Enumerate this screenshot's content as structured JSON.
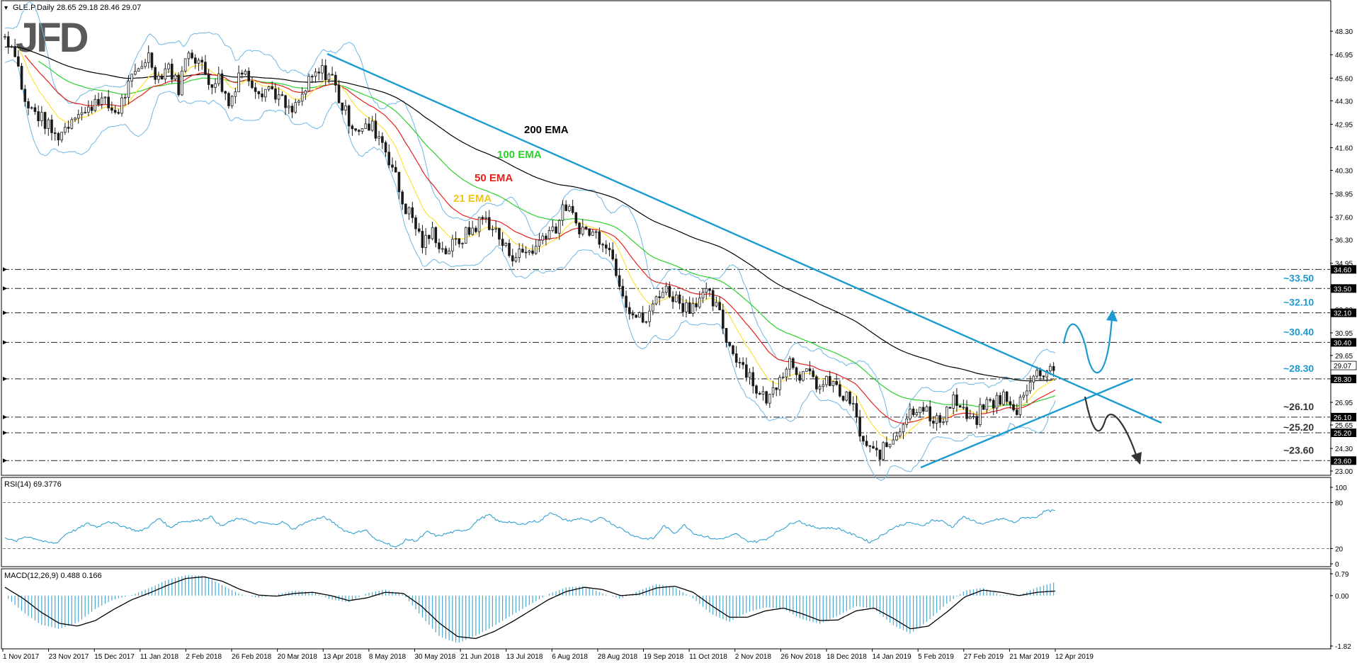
{
  "colors": {
    "candle": "#1a1a1a",
    "bb": "#6cb8e6",
    "ema21": "#ffe13d",
    "ema50": "#e3221c",
    "ema100": "#2cd12c",
    "ema200": "#000000",
    "trend": "#1b9bd0",
    "rsi": "#1f9ad0",
    "macd_hist": "#47a9cf",
    "macd_line": "#000000",
    "level_line": "#222222",
    "level_text": "#1b9bd0"
  },
  "chart_data": [
    {
      "type": "candlestick",
      "symbol_header": "GLE.P,Daily",
      "ohlc_header": "28.65 29.18 28.46 29.07",
      "logo": "JFD",
      "ylim": [
        23.0,
        49.2
      ],
      "y_ticks": [
        "48.30",
        "46.95",
        "45.60",
        "44.30",
        "42.95",
        "41.60",
        "40.30",
        "38.95",
        "37.60",
        "36.30",
        "34.95",
        "33.60",
        "32.30",
        "30.95",
        "29.65",
        "28.30",
        "26.95",
        "25.65",
        "24.30",
        "23.00"
      ],
      "x_labels": [
        "1 Nov 2017",
        "23 Nov 2017",
        "15 Dec 2017",
        "11 Jan 2018",
        "2 Feb 2018",
        "26 Feb 2018",
        "20 Mar 2018",
        "13 Apr 2018",
        "8 May 2018",
        "30 May 2018",
        "21 Jun 2018",
        "13 Jul 2018",
        "6 Aug 2018",
        "28 Aug 2018",
        "19 Sep 2018",
        "11 Oct 2018",
        "2 Nov 2018",
        "26 Nov 2018",
        "18 Dec 2018",
        "14 Jan 2019",
        "5 Feb 2019",
        "27 Feb 2019",
        "21 Mar 2019",
        "12 Apr 2019"
      ],
      "price_path": [
        48.0,
        47.2,
        44.0,
        43.6,
        43.0,
        42.2,
        42.8,
        43.8,
        43.5,
        44.6,
        44.0,
        43.6,
        45.0,
        46.0,
        47.0,
        45.6,
        46.4,
        45.0,
        47.3,
        46.6,
        45.4,
        45.6,
        44.0,
        46.1,
        45.6,
        44.9,
        45.1,
        44.4,
        43.5,
        44.4,
        45.5,
        46.0,
        45.8,
        44.0,
        43.0,
        42.6,
        42.8,
        42.0,
        40.5,
        38.4,
        37.5,
        36.0,
        36.8,
        35.6,
        36.0,
        36.5,
        37.0,
        37.6,
        36.9,
        35.8,
        35.4,
        35.6,
        35.8,
        36.8,
        37.0,
        38.3,
        37.2,
        36.8,
        36.6,
        36.2,
        34.5,
        32.6,
        31.8,
        31.6,
        33.3,
        33.4,
        32.8,
        32.4,
        33.0,
        33.1,
        32.1,
        30.2,
        29.4,
        28.6,
        27.3,
        27.2,
        28.6,
        29.4,
        28.6,
        28.4,
        27.8,
        28.2,
        27.3,
        27.0,
        24.8,
        24.0,
        24.1,
        24.8,
        25.8,
        26.6,
        26.9,
        25.6,
        26.2,
        27.2,
        26.3,
        25.7,
        26.8,
        27.0,
        27.3,
        26.2,
        27.8,
        28.5,
        28.8,
        29.07
      ],
      "ema200_label": "200 EMA",
      "ema100_label": "100 EMA",
      "ema50_label": "50 EMA",
      "ema21_label": "21 EMA",
      "price_labels": [
        "34.60",
        "33.50",
        "32.10",
        "30.40",
        "29.07",
        "28.30",
        "26.10",
        "25.20",
        "23.60"
      ],
      "levels": [
        {
          "value": 34.6,
          "badge": "34.60",
          "label": ""
        },
        {
          "value": 33.5,
          "badge": "33.50",
          "label": "~33.50"
        },
        {
          "value": 32.1,
          "badge": "32.10",
          "label": "~32.10"
        },
        {
          "value": 30.4,
          "badge": "30.40",
          "label": "~30.40"
        },
        {
          "value": 28.3,
          "badge": "28.30",
          "label": "~28.30"
        },
        {
          "value": 26.1,
          "badge": "26.10",
          "label": "~26.10"
        },
        {
          "value": 25.2,
          "badge": "25.20",
          "label": "~25.20"
        },
        {
          "value": 23.6,
          "badge": "23.60",
          "label": "~23.60"
        }
      ],
      "current_price": 29.07,
      "current_badge": "29.07"
    },
    {
      "type": "line",
      "title": "RSI(14) 69.3776",
      "ylim": [
        0,
        100
      ],
      "y_ticks": [
        "100",
        "80",
        "20",
        "0"
      ],
      "levels": [
        80,
        20
      ],
      "values": [
        35,
        29,
        36,
        33,
        28,
        27,
        40,
        45,
        53,
        48,
        56,
        51,
        47,
        42,
        49,
        60,
        47,
        55,
        56,
        57,
        62,
        49,
        56,
        60,
        53,
        54,
        51,
        55,
        45,
        53,
        58,
        61,
        53,
        43,
        40,
        45,
        31,
        28,
        21,
        32,
        30,
        42,
        36,
        40,
        43,
        45,
        58,
        64,
        55,
        55,
        51,
        55,
        56,
        68,
        59,
        56,
        60,
        54,
        61,
        52,
        45,
        37,
        33,
        33,
        50,
        40,
        51,
        39,
        36,
        32,
        34,
        39,
        30,
        29,
        33,
        42,
        50,
        57,
        50,
        47,
        47,
        46,
        40,
        35,
        28,
        36,
        45,
        51,
        54,
        49,
        57,
        56,
        48,
        61,
        57,
        51,
        57,
        59,
        54,
        61,
        60,
        69,
        69.38
      ]
    },
    {
      "type": "bar",
      "title": "MACD(12,26,9) 0.488 0.166",
      "ylim": [
        -1.82,
        0.79
      ],
      "y_ticks": [
        "0.79",
        "0.00",
        "-1.82"
      ],
      "series": [
        {
          "name": "MACD",
          "values": [
            0.0,
            -0.6,
            -1.05,
            -1.2,
            -0.98,
            -0.48,
            -0.14,
            0.02,
            0.28,
            0.58,
            0.74,
            0.72,
            0.38,
            0.05,
            -0.08,
            0.04,
            0.18,
            0.12,
            -0.14,
            -0.24,
            0.09,
            0.22,
            0.04,
            -0.75,
            -1.48,
            -1.72,
            -1.45,
            -1.1,
            -0.7,
            -0.32,
            0.05,
            0.3,
            0.35,
            0.08,
            -0.12,
            0.18,
            0.42,
            0.3,
            -0.1,
            -0.66,
            -0.95,
            -0.6,
            -0.42,
            -0.48,
            -0.85,
            -1.02,
            -0.72,
            -0.38,
            -0.48,
            -1.05,
            -1.38,
            -0.9,
            -0.3,
            0.18,
            0.28,
            0.02,
            0.02,
            0.3,
            0.488
          ]
        },
        {
          "name": "Signal",
          "values": [
            0.3,
            -0.1,
            -0.6,
            -1.0,
            -1.1,
            -0.9,
            -0.5,
            -0.15,
            0.1,
            0.38,
            0.62,
            0.68,
            0.52,
            0.22,
            0.02,
            -0.02,
            0.08,
            0.12,
            0.0,
            -0.18,
            -0.08,
            0.12,
            0.08,
            -0.38,
            -1.0,
            -1.48,
            -1.55,
            -1.3,
            -0.95,
            -0.55,
            -0.15,
            0.15,
            0.3,
            0.22,
            0.0,
            0.05,
            0.28,
            0.34,
            0.12,
            -0.35,
            -0.78,
            -0.78,
            -0.55,
            -0.45,
            -0.65,
            -0.9,
            -0.88,
            -0.55,
            -0.45,
            -0.8,
            -1.2,
            -1.1,
            -0.6,
            -0.05,
            0.2,
            0.12,
            0.0,
            0.12,
            0.166
          ]
        }
      ]
    }
  ]
}
